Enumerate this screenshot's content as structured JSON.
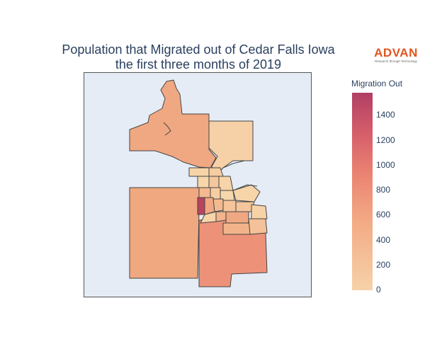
{
  "title_lines": [
    "Population that Migrated out of Cedar Falls Iowa",
    "the first three months of 2019"
  ],
  "logo": {
    "brand": "ADVAN",
    "tagline": "Research through Technology",
    "color": "#e2551f"
  },
  "colorbar": {
    "title": "Migration Out",
    "min": 0,
    "max": 1600,
    "ticks": [
      "1400",
      "1200",
      "1000",
      "800",
      "600",
      "400",
      "200",
      "0"
    ],
    "colorscale": [
      "#f6d2a9",
      "#f3aa84",
      "#ea8171",
      "#d55d6a",
      "#b13f64"
    ]
  },
  "map": {
    "background": "#e5ecf6",
    "border_color": "#444444",
    "regions": [
      {
        "id": "north-arm",
        "value": 560
      },
      {
        "id": "northeast",
        "value": 120
      },
      {
        "id": "west-large",
        "value": 520
      },
      {
        "id": "southeast-large",
        "value": 640
      },
      {
        "id": "downtown-hotspot",
        "value": 1580
      },
      {
        "id": "central-cells",
        "value": 170
      },
      {
        "id": "east-cells",
        "value": 420
      }
    ]
  }
}
